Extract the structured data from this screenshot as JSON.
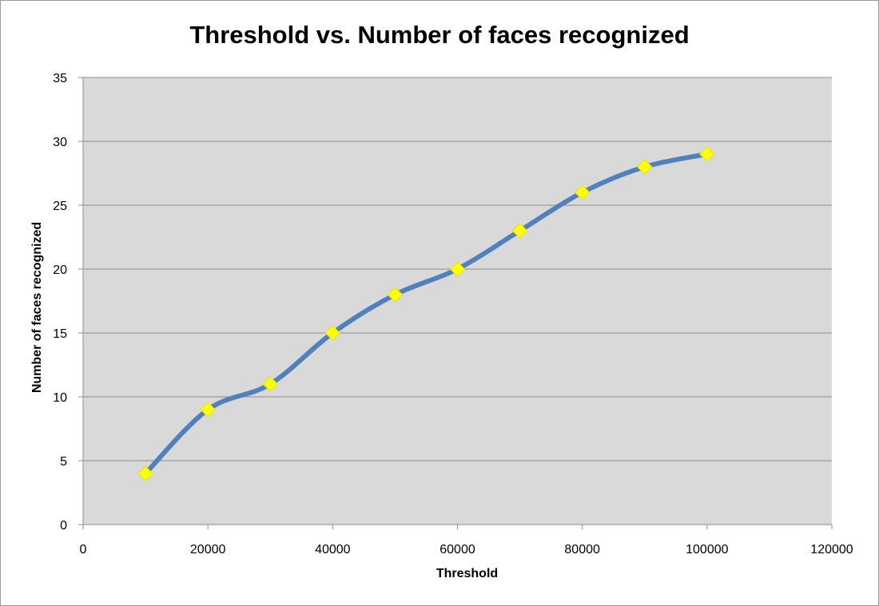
{
  "chart_data": {
    "type": "line",
    "title": "Threshold vs. Number of faces recognized",
    "xlabel": "Threshold",
    "ylabel": "Number of faces recognized",
    "xlim": [
      0,
      120000
    ],
    "ylim": [
      0,
      35
    ],
    "x_ticks": [
      "0",
      "20000",
      "40000",
      "60000",
      "80000",
      "100000",
      "120000"
    ],
    "y_ticks": [
      "0",
      "5",
      "10",
      "15",
      "20",
      "25",
      "30",
      "35"
    ],
    "grid": "horizontal",
    "legend": "none",
    "series": [
      {
        "x": [
          10000,
          20000,
          30000,
          40000,
          50000,
          60000,
          70000,
          80000,
          90000,
          100000
        ],
        "values": [
          4,
          9,
          11,
          15,
          18,
          20,
          23,
          26,
          28,
          29
        ],
        "line_color": "#4f81bd",
        "marker": "diamond",
        "marker_color": "#ffff00"
      }
    ],
    "plot_background": "#d9d9d9"
  }
}
